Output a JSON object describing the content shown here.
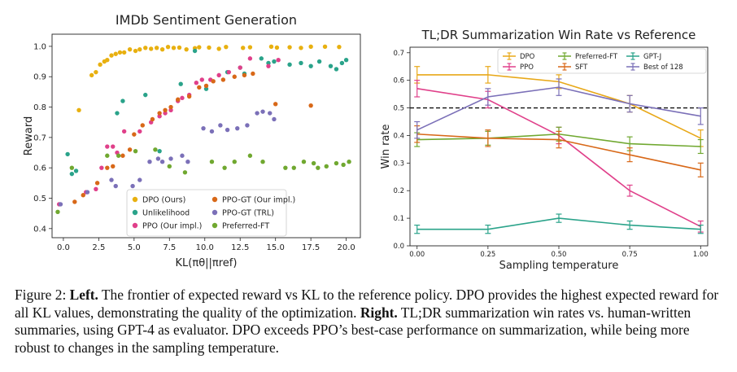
{
  "chart_data": [
    {
      "type": "scatter",
      "title": "IMDb Sentiment Generation",
      "xlabel": "KL(πθ||πref)",
      "ylabel": "Reward",
      "xlim": [
        -0.8,
        21
      ],
      "ylim": [
        0.37,
        1.04
      ],
      "xticks": [
        "0.0",
        "2.5",
        "5.0",
        "7.5",
        "10.0",
        "12.5",
        "15.0",
        "17.5",
        "20.0"
      ],
      "yticks": [
        "0.4",
        "0.5",
        "0.6",
        "0.7",
        "0.8",
        "0.9",
        "1.0"
      ],
      "grid": false,
      "legend_position": "lower-center",
      "series": [
        {
          "name": "DPO (Ours)",
          "color": "#e8b010",
          "points": [
            [
              1.1,
              0.79
            ],
            [
              2,
              0.905
            ],
            [
              2.3,
              0.915
            ],
            [
              2.6,
              0.94
            ],
            [
              2.9,
              0.95
            ],
            [
              3.1,
              0.955
            ],
            [
              3.4,
              0.97
            ],
            [
              3.7,
              0.975
            ],
            [
              4,
              0.98
            ],
            [
              4.3,
              0.98
            ],
            [
              4.7,
              0.99
            ],
            [
              5.1,
              0.985
            ],
            [
              5.4,
              0.99
            ],
            [
              5.8,
              0.995
            ],
            [
              6.2,
              0.992
            ],
            [
              6.6,
              0.995
            ],
            [
              7,
              0.99
            ],
            [
              7.4,
              0.998
            ],
            [
              7.8,
              0.995
            ],
            [
              8.2,
              0.996
            ],
            [
              8.7,
              0.99
            ],
            [
              9.3,
              0.994
            ],
            [
              9.6,
              0.997
            ],
            [
              10.3,
              0.996
            ],
            [
              11,
              0.992
            ],
            [
              11.5,
              0.998
            ],
            [
              12.7,
              0.995
            ],
            [
              13.2,
              0.997
            ],
            [
              14.7,
              0.999
            ],
            [
              15.1,
              0.996
            ],
            [
              16,
              0.997
            ],
            [
              16.8,
              0.995
            ],
            [
              17.5,
              0.999
            ],
            [
              18.5,
              0.999
            ],
            [
              19.5,
              0.998
            ]
          ]
        },
        {
          "name": "Unlikelihood",
          "color": "#2aa38a",
          "points": [
            [
              0.3,
              0.645
            ],
            [
              0.6,
              0.58
            ],
            [
              0.9,
              0.59
            ],
            [
              3.8,
              0.78
            ],
            [
              4.2,
              0.82
            ],
            [
              5.8,
              0.84
            ],
            [
              6.8,
              0.655
            ],
            [
              8.3,
              0.876
            ],
            [
              9.3,
              0.985
            ],
            [
              10.1,
              0.86
            ],
            [
              11.6,
              0.915
            ],
            [
              12.5,
              0.93
            ],
            [
              12.8,
              0.91
            ],
            [
              14,
              0.96
            ],
            [
              14.5,
              0.945
            ],
            [
              14.9,
              0.95
            ],
            [
              16,
              0.94
            ],
            [
              16.8,
              0.945
            ],
            [
              17.5,
              0.935
            ],
            [
              18.1,
              0.95
            ],
            [
              18.9,
              0.935
            ],
            [
              19.3,
              0.925
            ],
            [
              19.7,
              0.945
            ],
            [
              20,
              0.955
            ]
          ]
        },
        {
          "name": "PPO (Our impl.)",
          "color": "#e0408a",
          "points": [
            [
              -0.3,
              0.48
            ],
            [
              1.6,
              0.52
            ],
            [
              2.3,
              0.53
            ],
            [
              2.7,
              0.6
            ],
            [
              3.1,
              0.67
            ],
            [
              3.5,
              0.67
            ],
            [
              3.8,
              0.65
            ],
            [
              4.3,
              0.72
            ],
            [
              5.4,
              0.72
            ],
            [
              6.2,
              0.75
            ],
            [
              6.8,
              0.77
            ],
            [
              7.2,
              0.78
            ],
            [
              7.6,
              0.79
            ],
            [
              8.1,
              0.82
            ],
            [
              8.4,
              0.83
            ],
            [
              8.9,
              0.84
            ],
            [
              9.4,
              0.88
            ],
            [
              9.8,
              0.89
            ],
            [
              10.4,
              0.89
            ],
            [
              11,
              0.905
            ],
            [
              11.7,
              0.915
            ],
            [
              12.5,
              0.93
            ],
            [
              13.2,
              0.96
            ],
            [
              14.5,
              0.935
            ],
            [
              15.2,
              0.955
            ]
          ]
        },
        {
          "name": "PPO-GT (Our impl.)",
          "color": "#d86818",
          "points": [
            [
              0.8,
              0.488
            ],
            [
              1.4,
              0.51
            ],
            [
              2.4,
              0.55
            ],
            [
              3.1,
              0.6
            ],
            [
              3.5,
              0.605
            ],
            [
              4.2,
              0.64
            ],
            [
              4.7,
              0.66
            ],
            [
              5,
              0.71
            ],
            [
              5.6,
              0.74
            ],
            [
              6.3,
              0.76
            ],
            [
              6.8,
              0.78
            ],
            [
              7.2,
              0.79
            ],
            [
              7.6,
              0.8
            ],
            [
              8.1,
              0.825
            ],
            [
              8.9,
              0.835
            ],
            [
              9.6,
              0.865
            ],
            [
              10.1,
              0.87
            ],
            [
              10.6,
              0.885
            ],
            [
              11.3,
              0.89
            ],
            [
              12.1,
              0.9
            ],
            [
              12.8,
              0.905
            ],
            [
              13.4,
              0.91
            ],
            [
              15,
              0.81
            ],
            [
              17.5,
              0.805
            ]
          ]
        },
        {
          "name": "PPO-GT (TRL)",
          "color": "#7b70b8",
          "points": [
            [
              -0.2,
              0.48
            ],
            [
              1.7,
              0.52
            ],
            [
              3.4,
              0.56
            ],
            [
              3.7,
              0.54
            ],
            [
              4.9,
              0.54
            ],
            [
              5.4,
              0.56
            ],
            [
              6.1,
              0.62
            ],
            [
              6.7,
              0.63
            ],
            [
              7,
              0.62
            ],
            [
              7.6,
              0.63
            ],
            [
              8.4,
              0.64
            ],
            [
              8.8,
              0.62
            ],
            [
              9.9,
              0.73
            ],
            [
              10.5,
              0.72
            ],
            [
              11.1,
              0.74
            ],
            [
              11.6,
              0.725
            ],
            [
              12.3,
              0.73
            ],
            [
              13,
              0.74
            ],
            [
              13.7,
              0.78
            ],
            [
              14.1,
              0.785
            ],
            [
              14.6,
              0.78
            ],
            [
              14.9,
              0.76
            ]
          ]
        },
        {
          "name": "Preferred-FT",
          "color": "#70a830",
          "points": [
            [
              -0.4,
              0.455
            ],
            [
              0.6,
              0.6
            ],
            [
              3.1,
              0.64
            ],
            [
              3.9,
              0.64
            ],
            [
              5.1,
              0.655
            ],
            [
              6.5,
              0.66
            ],
            [
              7.5,
              0.605
            ],
            [
              8.6,
              0.585
            ],
            [
              10.5,
              0.62
            ],
            [
              11.4,
              0.6
            ],
            [
              12.1,
              0.62
            ],
            [
              13.2,
              0.64
            ],
            [
              14.1,
              0.62
            ],
            [
              15.7,
              0.6
            ],
            [
              16.3,
              0.6
            ],
            [
              17,
              0.62
            ],
            [
              17.7,
              0.615
            ],
            [
              18,
              0.6
            ],
            [
              18.6,
              0.605
            ],
            [
              19.3,
              0.615
            ],
            [
              19.8,
              0.61
            ],
            [
              20.2,
              0.62
            ]
          ]
        }
      ]
    },
    {
      "type": "line",
      "title": "TL;DR Summarization Win Rate vs Reference",
      "xlabel": "Sampling temperature",
      "ylabel": "Win rate",
      "xlim": [
        -0.025,
        1.025
      ],
      "ylim": [
        0.0,
        0.72
      ],
      "xticks": [
        "0.00",
        "0.25",
        "0.50",
        "0.75",
        "1.00"
      ],
      "yticks": [
        "0.0",
        "0.1",
        "0.2",
        "0.3",
        "0.4",
        "0.5",
        "0.6",
        "0.7"
      ],
      "x": [
        0.0,
        0.25,
        0.5,
        0.75,
        1.0
      ],
      "reference_line": 0.5,
      "grid": false,
      "legend_position": "top-center",
      "series": [
        {
          "name": "DPO",
          "color": "#e8a818",
          "values": [
            0.62,
            0.62,
            0.595,
            0.515,
            0.39
          ],
          "errors": [
            0.03,
            0.03,
            0.025,
            0.03,
            0.03
          ]
        },
        {
          "name": "PPO",
          "color": "#e0408a",
          "values": [
            0.57,
            0.53,
            0.4,
            0.2,
            0.07
          ],
          "errors": [
            0.03,
            0.03,
            0.03,
            0.02,
            0.02
          ]
        },
        {
          "name": "Preferred-FT",
          "color": "#70a830",
          "values": [
            0.385,
            0.39,
            0.405,
            0.37,
            0.36
          ],
          "errors": [
            0.025,
            0.025,
            0.025,
            0.025,
            0.025
          ]
        },
        {
          "name": "SFT",
          "color": "#d86818",
          "values": [
            0.405,
            0.39,
            0.385,
            0.33,
            0.275
          ],
          "errors": [
            0.03,
            0.03,
            0.03,
            0.025,
            0.025
          ]
        },
        {
          "name": "GPT-J",
          "color": "#2aa38a",
          "values": [
            0.06,
            0.06,
            0.1,
            0.075,
            0.06
          ],
          "errors": [
            0.015,
            0.015,
            0.015,
            0.015,
            0.015
          ]
        },
        {
          "name": "Best of 128",
          "color": "#7b70b8",
          "values": [
            0.42,
            0.54,
            0.575,
            0.515,
            0.47
          ],
          "errors": [
            0.03,
            0.03,
            0.03,
            0.03,
            0.03
          ]
        }
      ]
    }
  ],
  "caption": {
    "figure_label": "Figure 2: ",
    "left_label": "Left.",
    "left_text": " The frontier of expected reward vs KL to the reference policy. DPO provides the highest expected reward for all KL values, demonstrating the quality of the optimization. ",
    "right_label": "Right.",
    "right_text": " TL;DR summarization win rates vs. human-written summaries, using GPT-4 as evaluator. DPO exceeds PPO’s best-case performance on summarization, while being more robust to changes in the sampling temperature."
  }
}
